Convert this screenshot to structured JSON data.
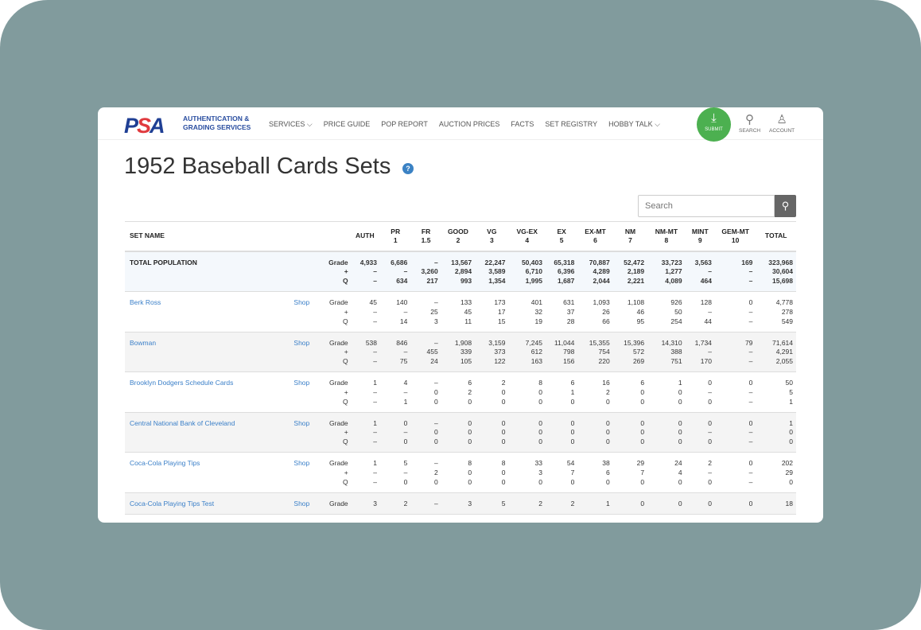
{
  "nav": {
    "logo": "PSA",
    "tagline1": "AUTHENTICATION &",
    "tagline2": "GRADING SERVICES",
    "items": [
      "SERVICES ⌵",
      "PRICE GUIDE",
      "POP REPORT",
      "AUCTION PRICES",
      "FACTS",
      "SET REGISTRY",
      "HOBBY TALK ⌵"
    ],
    "submit": "SUBMIT",
    "search": "SEARCH",
    "account": "ACCOUNT"
  },
  "page": {
    "title": "1952 Baseball Cards Sets",
    "help": "?"
  },
  "search": {
    "placeholder": "Search"
  },
  "table": {
    "headers": [
      "SET NAME",
      "",
      "",
      "AUTH",
      "PR\n1",
      "FR\n1.5",
      "GOOD\n2",
      "VG\n3",
      "VG-EX\n4",
      "EX\n5",
      "EX-MT\n6",
      "NM\n7",
      "NM-MT\n8",
      "MINT\n9",
      "GEM-MT\n10",
      "TOTAL"
    ],
    "row_labels": [
      "Grade",
      "+",
      "Q"
    ],
    "total": {
      "name": "TOTAL POPULATION",
      "rows": [
        [
          "4,933",
          "6,686",
          "–",
          "13,567",
          "22,247",
          "50,403",
          "65,318",
          "70,887",
          "52,472",
          "33,723",
          "3,563",
          "169",
          "323,968"
        ],
        [
          "–",
          "–",
          "3,260",
          "2,894",
          "3,589",
          "6,710",
          "6,396",
          "4,289",
          "2,189",
          "1,277",
          "–",
          "–",
          "30,604"
        ],
        [
          "–",
          "634",
          "217",
          "993",
          "1,354",
          "1,995",
          "1,687",
          "2,044",
          "2,221",
          "4,089",
          "464",
          "–",
          "15,698"
        ]
      ]
    },
    "sets": [
      {
        "name": "Berk Ross",
        "shop": "Shop",
        "rows": [
          [
            "45",
            "140",
            "–",
            "133",
            "173",
            "401",
            "631",
            "1,093",
            "1,108",
            "926",
            "128",
            "0",
            "4,778"
          ],
          [
            "–",
            "–",
            "25",
            "45",
            "17",
            "32",
            "37",
            "26",
            "46",
            "50",
            "–",
            "–",
            "278"
          ],
          [
            "–",
            "14",
            "3",
            "11",
            "15",
            "19",
            "28",
            "66",
            "95",
            "254",
            "44",
            "–",
            "549"
          ]
        ]
      },
      {
        "name": "Bowman",
        "shop": "Shop",
        "rows": [
          [
            "538",
            "846",
            "–",
            "1,908",
            "3,159",
            "7,245",
            "11,044",
            "15,355",
            "15,396",
            "14,310",
            "1,734",
            "79",
            "71,614"
          ],
          [
            "–",
            "–",
            "455",
            "339",
            "373",
            "612",
            "798",
            "754",
            "572",
            "388",
            "–",
            "–",
            "4,291"
          ],
          [
            "–",
            "75",
            "24",
            "105",
            "122",
            "163",
            "156",
            "220",
            "269",
            "751",
            "170",
            "–",
            "2,055"
          ]
        ]
      },
      {
        "name": "Brooklyn Dodgers Schedule Cards",
        "shop": "Shop",
        "rows": [
          [
            "1",
            "4",
            "–",
            "6",
            "2",
            "8",
            "6",
            "16",
            "6",
            "1",
            "0",
            "0",
            "50"
          ],
          [
            "–",
            "–",
            "0",
            "2",
            "0",
            "0",
            "1",
            "2",
            "0",
            "0",
            "–",
            "–",
            "5"
          ],
          [
            "–",
            "1",
            "0",
            "0",
            "0",
            "0",
            "0",
            "0",
            "0",
            "0",
            "0",
            "–",
            "1"
          ]
        ]
      },
      {
        "name": "Central National Bank of Cleveland",
        "shop": "Shop",
        "rows": [
          [
            "1",
            "0",
            "–",
            "0",
            "0",
            "0",
            "0",
            "0",
            "0",
            "0",
            "0",
            "0",
            "1"
          ],
          [
            "–",
            "–",
            "0",
            "0",
            "0",
            "0",
            "0",
            "0",
            "0",
            "0",
            "–",
            "–",
            "0"
          ],
          [
            "–",
            "0",
            "0",
            "0",
            "0",
            "0",
            "0",
            "0",
            "0",
            "0",
            "0",
            "–",
            "0"
          ]
        ]
      },
      {
        "name": "Coca-Cola Playing Tips",
        "shop": "Shop",
        "rows": [
          [
            "1",
            "5",
            "–",
            "8",
            "8",
            "33",
            "54",
            "38",
            "29",
            "24",
            "2",
            "0",
            "202"
          ],
          [
            "–",
            "–",
            "2",
            "0",
            "0",
            "3",
            "7",
            "6",
            "7",
            "4",
            "–",
            "–",
            "29"
          ],
          [
            "–",
            "0",
            "0",
            "0",
            "0",
            "0",
            "0",
            "0",
            "0",
            "0",
            "0",
            "–",
            "0"
          ]
        ]
      },
      {
        "name": "Coca-Cola Playing Tips Test",
        "shop": "Shop",
        "rows": [
          [
            "3",
            "2",
            "–",
            "3",
            "5",
            "2",
            "2",
            "1",
            "0",
            "0",
            "0",
            "0",
            "18"
          ]
        ]
      }
    ]
  }
}
